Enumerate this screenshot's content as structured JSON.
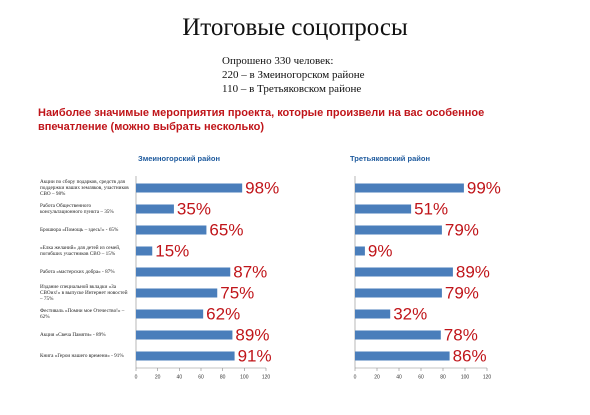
{
  "title": "Итоговые соцопросы",
  "intro": [
    "Опрошено 330 человек:",
    "220 – в Змеиногорском районе",
    "110 – в Третьяковском районе"
  ],
  "question": "Наиболее значимые мероприятия проекта, которые произвели на вас особенное впечатление (можно выбрать несколько)",
  "chart_data": [
    {
      "type": "hbar",
      "title": "Змеиногорский район",
      "categories": [
        "Акции по сбору подарков, средств для поддержки наших земляков, участников СВО – 98%",
        "Работа Общественного консультационного пункта – 35%",
        "Брошюра «Помощь – здесь!» - 65%",
        "«Елка желаний» для детей из семей, погибших участников СВО – 15%",
        "Работа «мастерских добра» - 87%",
        "Издание специальной вкладки «За СВОих!» в выпуске Интернет новостей – 75%",
        "Фестиваль «Помни мое Отечество!» – 62%",
        "Акция «Свеча Памяти» - 89%",
        "Книга «Герои нашего времени» - 91%"
      ],
      "values": [
        98,
        35,
        65,
        15,
        87,
        75,
        62,
        89,
        91
      ],
      "value_labels": [
        "98%",
        "35%",
        "65%",
        "15%",
        "87%",
        "75%",
        "62%",
        "89%",
        "91%"
      ],
      "color": "#4a7ebb",
      "label_color": "#c0151a",
      "xlim": [
        0,
        120
      ],
      "xticks": [
        0,
        20,
        40,
        60,
        80,
        100,
        120
      ]
    },
    {
      "type": "hbar",
      "title": "Третьяковский район",
      "categories": [
        null,
        null,
        null,
        null,
        null,
        null,
        null,
        null,
        null
      ],
      "values": [
        99,
        51,
        79,
        9,
        89,
        79,
        32,
        78,
        86
      ],
      "value_labels": [
        "99%",
        "51%",
        "79%",
        "9%",
        "89%",
        "79%",
        "32%",
        "78%",
        "86%"
      ],
      "color": "#4a7ebb",
      "label_color": "#c0151a",
      "xlim": [
        0,
        120
      ],
      "xticks": [
        0,
        20,
        40,
        60,
        80,
        100,
        120
      ]
    }
  ]
}
